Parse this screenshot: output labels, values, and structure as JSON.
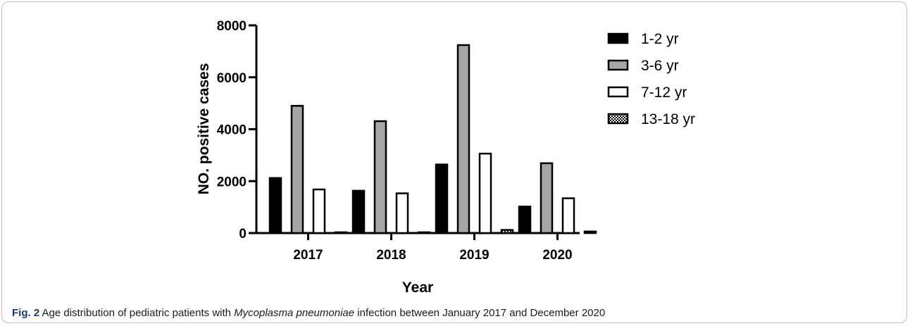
{
  "chart_data": {
    "type": "bar",
    "categories": [
      "2017",
      "2018",
      "2019",
      "2020"
    ],
    "series": [
      {
        "name": "1-2 yr",
        "values": [
          2120,
          1630,
          2640,
          1020
        ],
        "pattern": "solid-black"
      },
      {
        "name": "3-6 yr",
        "values": [
          4900,
          4310,
          7240,
          2690
        ],
        "pattern": "gray"
      },
      {
        "name": "7-12 yr",
        "values": [
          1680,
          1530,
          3060,
          1340
        ],
        "pattern": "white"
      },
      {
        "name": "13-18 yr",
        "values": [
          30,
          30,
          120,
          60
        ],
        "pattern": "checker"
      }
    ],
    "xlabel": "Year",
    "ylabel": "NO. positive cases",
    "ylim": [
      0,
      8000
    ],
    "yticks": [
      "0",
      "2000",
      "4000",
      "6000",
      "8000"
    ],
    "grid": false,
    "legend_position": "right"
  },
  "caption": {
    "label": "Fig. 2",
    "text_before": " Age distribution of pediatric patients with ",
    "italic": "Mycoplasma pneumoniae",
    "text_after": " infection between January 2017 and December 2020"
  },
  "colors": {
    "bar_black": "#000000",
    "bar_gray": "#a6a6a6",
    "bar_white": "#ffffff",
    "caption_label": "#1a3a6e"
  }
}
